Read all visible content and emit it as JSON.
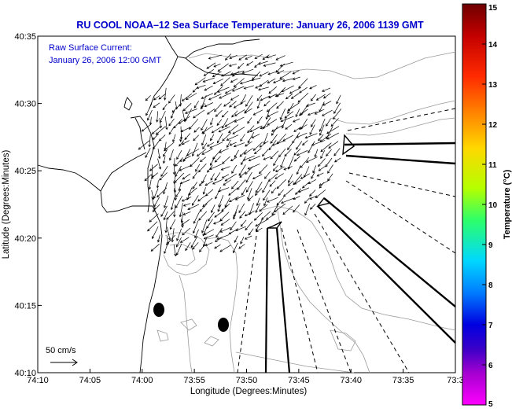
{
  "title": "RU COOL  NOAA–12  Sea Surface Temperature:  January 26, 2006 1139 GMT",
  "overlay": {
    "line1": "Raw Surface Current:",
    "line2": "January 26, 2006 12:00 GMT"
  },
  "axes": {
    "x_label": "Longitude (Degrees:Minutes)",
    "y_label": "Latitude (Degrees:Minutes)",
    "x_ticks": [
      "74:10",
      "74:05",
      "74:00",
      "73:55",
      "73:50",
      "73:45",
      "73:40",
      "73:35",
      "73:3"
    ],
    "y_ticks": [
      "40:35",
      "40:30",
      "40:25",
      "40:20",
      "40:15",
      "40:10"
    ]
  },
  "scale_vector": {
    "label": "50 cm/s"
  },
  "colorbar": {
    "label": "Temperature (°C)",
    "ticks": [
      "15",
      "14",
      "13",
      "12",
      "11",
      "10",
      "9",
      "8",
      "7",
      "6",
      "5"
    ]
  },
  "colors": {
    "title": "#0000cc",
    "frame": "#000000",
    "contour": "#999999"
  }
}
